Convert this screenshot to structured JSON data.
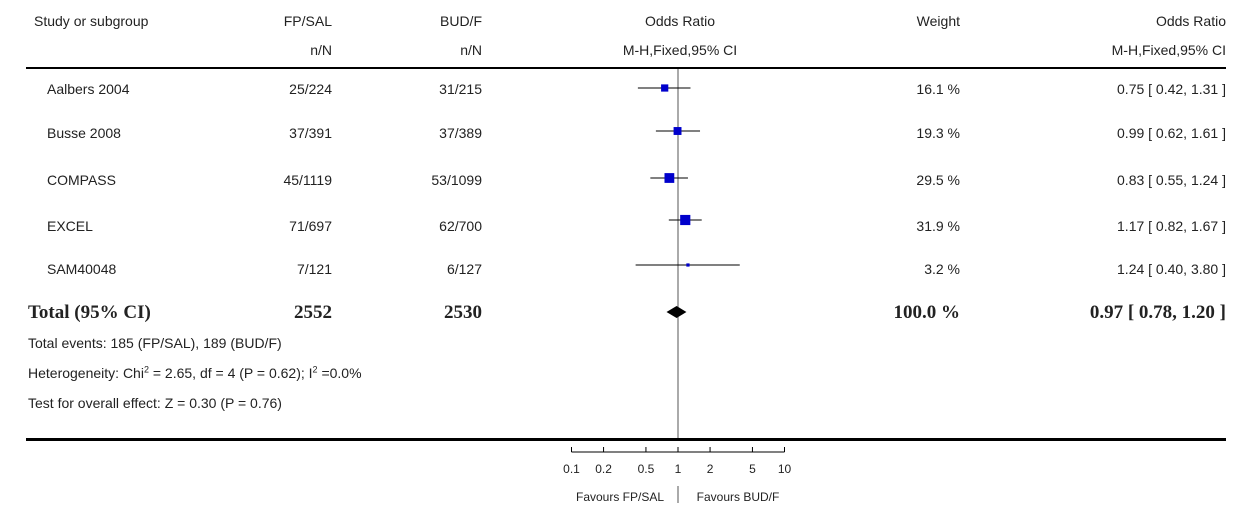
{
  "header": {
    "study_col": "Study or subgroup",
    "group1_col": "FP/SAL",
    "group2_col": "BUD/F",
    "or_col": "Odds Ratio",
    "weight_col": "Weight",
    "or_ci_col": "Odds Ratio",
    "group1_sub": "n/N",
    "group2_sub": "n/N",
    "or_sub": "M-H,Fixed,95% CI",
    "or_ci_sub": "M-H,Fixed,95% CI"
  },
  "rows": [
    {
      "study": "Aalbers 2004",
      "g1": "25/224",
      "g2": "31/215",
      "weight": "16.1 %",
      "ci_text": "0.75 [ 0.42, 1.31 ]"
    },
    {
      "study": "Busse 2008",
      "g1": "37/391",
      "g2": "37/389",
      "weight": "19.3 %",
      "ci_text": "0.99 [ 0.62, 1.61 ]"
    },
    {
      "study": "COMPASS",
      "g1": "45/1119",
      "g2": "53/1099",
      "weight": "29.5 %",
      "ci_text": "0.83 [ 0.55, 1.24 ]"
    },
    {
      "study": "EXCEL",
      "g1": "71/697",
      "g2": "62/700",
      "weight": "31.9 %",
      "ci_text": "1.17 [ 0.82, 1.67 ]"
    },
    {
      "study": "SAM40048",
      "g1": "7/121",
      "g2": "6/127",
      "weight": "3.2 %",
      "ci_text": "1.24 [ 0.40, 3.80 ]"
    }
  ],
  "total": {
    "label": "Total (95% CI)",
    "g1": "2552",
    "g2": "2530",
    "weight": "100.0 %",
    "ci_text": "0.97 [ 0.78, 1.20 ]"
  },
  "footnotes": {
    "events": "Total events: 185 (FP/SAL), 189 (BUD/F)",
    "het_a": "Heterogeneity: Chi",
    "het_b": " = 2.65, df = 4 (P = 0.62); I",
    "het_c": " =0.0%",
    "het_sup": "2",
    "overall": "Test for overall effect: Z = 0.30 (P = 0.76)"
  },
  "axis": {
    "ticks": [
      "0.1",
      "0.2",
      "0.5",
      "1",
      "2",
      "5",
      "10"
    ],
    "favours_left": "Favours FP/SAL",
    "favours_right": "Favours BUD/F"
  },
  "chart_data": {
    "type": "forest",
    "scale": "log",
    "xlim": [
      0.1,
      10
    ],
    "null_value": 1,
    "marker_color": "#0000cc",
    "studies": [
      {
        "name": "Aalbers 2004",
        "or": 0.75,
        "lo": 0.42,
        "hi": 1.31,
        "weight": 16.1
      },
      {
        "name": "Busse 2008",
        "or": 0.99,
        "lo": 0.62,
        "hi": 1.61,
        "weight": 19.3
      },
      {
        "name": "COMPASS",
        "or": 0.83,
        "lo": 0.55,
        "hi": 1.24,
        "weight": 29.5
      },
      {
        "name": "EXCEL",
        "or": 1.17,
        "lo": 0.82,
        "hi": 1.67,
        "weight": 31.9
      },
      {
        "name": "SAM40048",
        "or": 1.24,
        "lo": 0.4,
        "hi": 3.8,
        "weight": 3.2
      }
    ],
    "pooled": {
      "name": "Total (95% CI)",
      "or": 0.97,
      "lo": 0.78,
      "hi": 1.2
    }
  }
}
